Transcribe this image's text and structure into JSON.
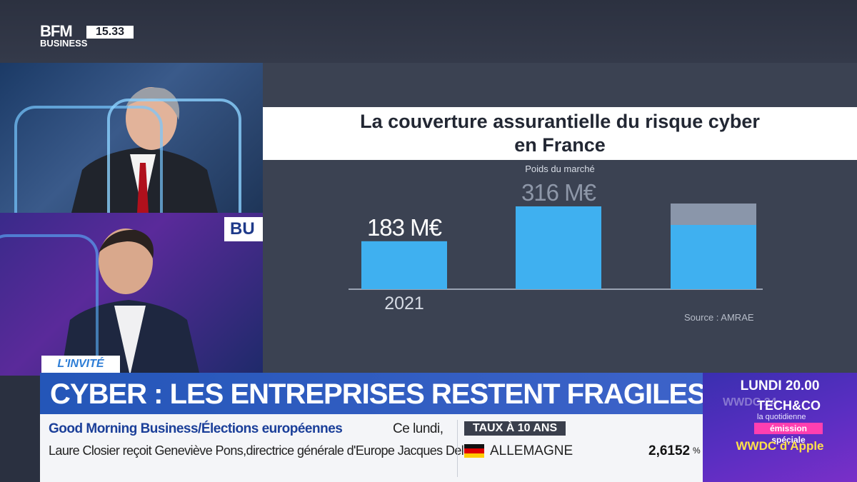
{
  "channel": {
    "logo_top": "BFM",
    "logo_bottom": "BUSINESS",
    "clock": "15.33"
  },
  "chart_data": {
    "type": "bar",
    "title": "La couverture assurantielle du risque cyber en France",
    "title_line1": "La couverture assurantielle du risque cyber",
    "title_line2": "en France",
    "subtitle": "Poids du marché",
    "categories": [
      "2021",
      "",
      ""
    ],
    "values": [
      183,
      316,
      null
    ],
    "value_labels": [
      "183 M€",
      "316 M€",
      ""
    ],
    "unit": "M€",
    "source": "Source : AMRAE",
    "grid": false,
    "legend": "none",
    "colors": {
      "bar": "#3fb0f0",
      "bar_faded": "#8a96aa"
    }
  },
  "studio_partial_text": "BU",
  "lower_third": {
    "tag": "L'INVITÉ",
    "headline": "CYBER : LES ENTREPRISES RESTENT FRAGILES",
    "ticker_title": "Good Morning Business/Élections européennes",
    "ticker_line1": "Ce lundi,",
    "ticker_line2": "Laure Closier reçoit Geneviève Pons,directrice générale d'Europe Jacques Delors.",
    "rates_label": "TAUX À 10 ANS",
    "country": "ALLEMAGNE",
    "rate_value": "2,6152",
    "rate_unit": "%"
  },
  "promo": {
    "time": "LUNDI 20.00",
    "watermark": "WWDC 24",
    "brand": "TECH&CO",
    "sub": "la quotidienne",
    "special": "émission spéciale",
    "event": "WWDC d'Apple"
  }
}
